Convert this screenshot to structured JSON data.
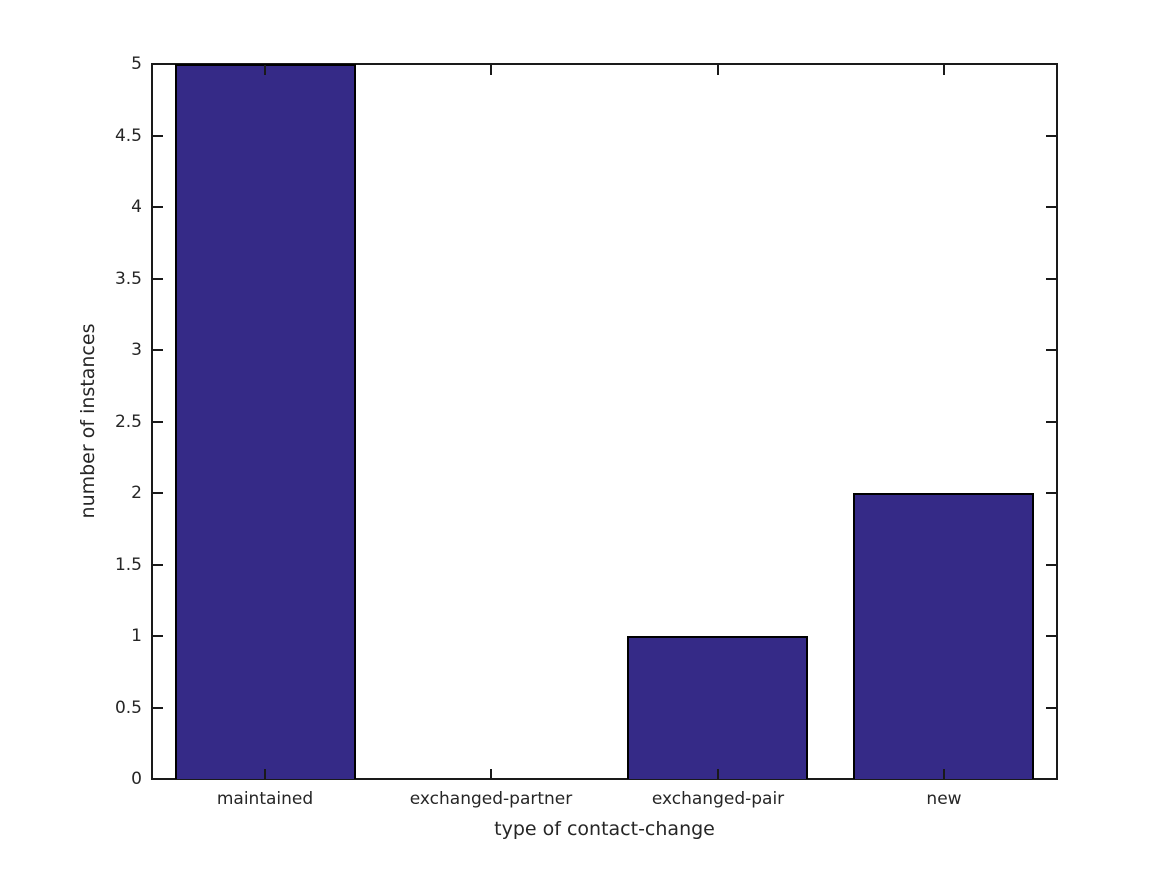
{
  "figure": {
    "background_color": "#ffffff"
  },
  "chart_data": {
    "type": "bar",
    "categories": [
      "maintained",
      "exchanged-partner",
      "exchanged-pair",
      "new"
    ],
    "values": [
      5,
      0,
      1,
      2
    ],
    "title": "",
    "xlabel": "type of contact-change",
    "ylabel": "number of instances",
    "ylim": [
      0,
      5
    ],
    "ytick_step": 0.5,
    "ytick_labels": [
      "0",
      "0.5",
      "1",
      "1.5",
      "2",
      "2.5",
      "3",
      "3.5",
      "4",
      "4.5",
      "5"
    ],
    "grid": false,
    "legend": null,
    "bar_width_fraction": 0.8,
    "bar_color": "#352a87",
    "bar_edge_color": "#000000",
    "axis_color": "#1a1a1a",
    "text_color": "#262626",
    "box": "on",
    "tick_direction": "in"
  }
}
